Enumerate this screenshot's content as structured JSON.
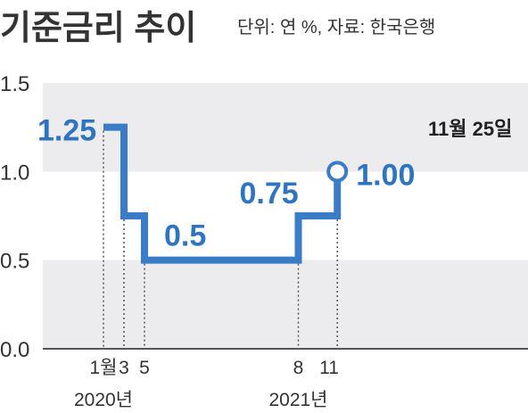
{
  "title": "기준금리 추이",
  "source": "단위: 연 %, 자료: 한국은행",
  "colors": {
    "line": "#3a7cc6",
    "label": "#2f74c0",
    "band": "#ececee",
    "axis": "#555555",
    "dotted": "#555555"
  },
  "chart_data": {
    "type": "line",
    "step": true,
    "unit": "연 %",
    "ylim": [
      0,
      1.5
    ],
    "yticks": [
      "0.0",
      "0.5",
      "1.0",
      "1.5"
    ],
    "series": [
      {
        "points": [
          {
            "x": "2020-01",
            "y": 1.25
          },
          {
            "x": "2020-03",
            "y": 0.75
          },
          {
            "x": "2020-05",
            "y": 0.5
          },
          {
            "x": "2021-08",
            "y": 0.75
          },
          {
            "x": "2021-11-25",
            "y": 1.0
          }
        ]
      }
    ],
    "xticks": [
      {
        "x": "2020-01",
        "label": "1월",
        "year": "2020년"
      },
      {
        "x": "2020-03",
        "label": "3",
        "year": ""
      },
      {
        "x": "2020-05",
        "label": "5",
        "year": ""
      },
      {
        "x": "2021-08",
        "label": "8",
        "year": "2021년"
      },
      {
        "x": "2021-11",
        "label": "11",
        "year": ""
      }
    ],
    "value_labels": [
      "1.25",
      "",
      "0.5",
      "0.75",
      "1.00"
    ],
    "annotation": "11월 25일"
  }
}
